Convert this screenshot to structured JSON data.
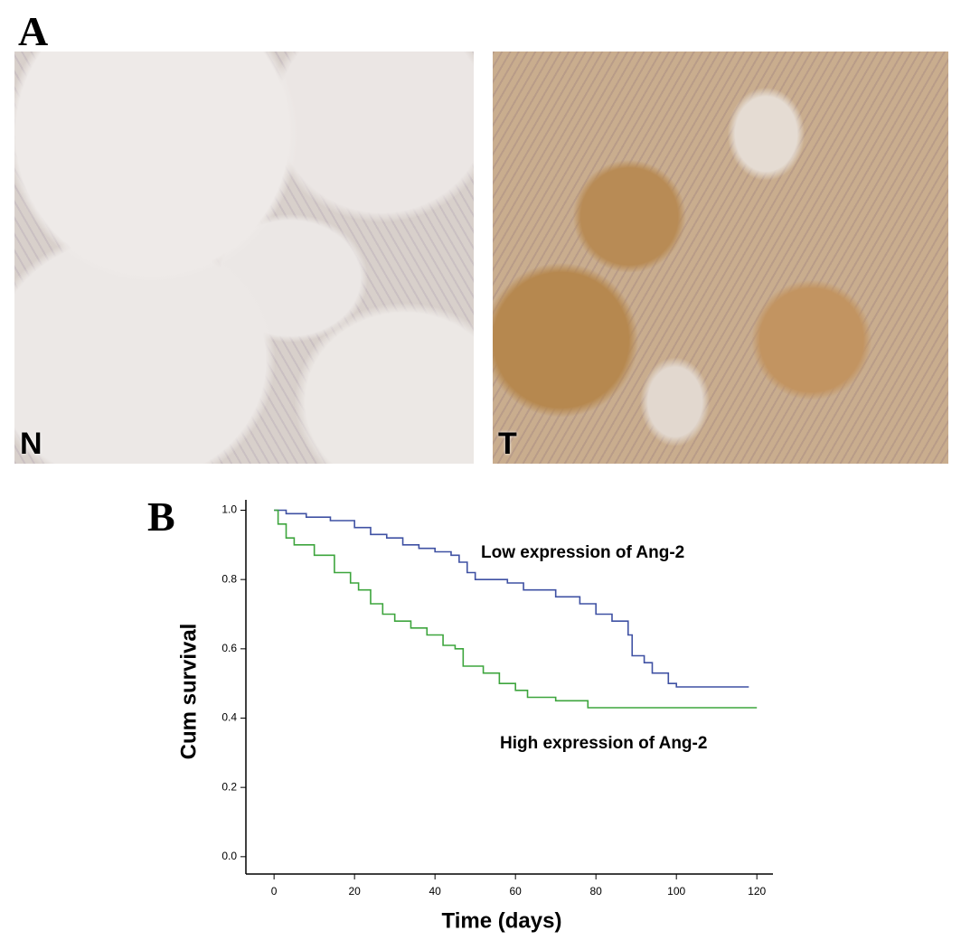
{
  "panels": {
    "a": "A",
    "b": "B"
  },
  "images": {
    "normal": "N",
    "tumor": "T"
  },
  "chart_data": {
    "type": "step",
    "xlabel": "Time (days)",
    "ylabel": "Cum survival",
    "xlim": [
      -7,
      124
    ],
    "ylim": [
      -0.05,
      1.03
    ],
    "xticks": [
      0,
      20,
      40,
      60,
      80,
      100,
      120
    ],
    "yticks": [
      {
        "value": 0,
        "label": "0.0"
      },
      0.2,
      0.4,
      0.6,
      0.8,
      {
        "value": 1,
        "label": "1.0"
      }
    ],
    "annotations": [
      "Low expression of Ang-2",
      "High expression of Ang-2"
    ],
    "series": [
      {
        "color": "#3f51a3",
        "x": [
          0,
          3,
          8,
          14,
          20,
          24,
          28,
          32,
          36,
          40,
          44,
          46,
          48,
          50,
          58,
          62,
          70,
          76,
          80,
          84,
          88,
          89,
          92,
          94,
          98,
          100,
          118
        ],
        "values": [
          1.0,
          0.99,
          0.98,
          0.97,
          0.95,
          0.93,
          0.92,
          0.9,
          0.89,
          0.88,
          0.87,
          0.85,
          0.82,
          0.8,
          0.79,
          0.77,
          0.75,
          0.73,
          0.7,
          0.68,
          0.64,
          0.58,
          0.56,
          0.53,
          0.5,
          0.49,
          0.49
        ]
      },
      {
        "color": "#3da53d",
        "x": [
          0,
          1,
          3,
          5,
          10,
          15,
          19,
          21,
          24,
          27,
          30,
          34,
          38,
          42,
          45,
          47,
          52,
          56,
          60,
          63,
          70,
          78,
          120
        ],
        "values": [
          1.0,
          0.96,
          0.92,
          0.9,
          0.87,
          0.82,
          0.79,
          0.77,
          0.73,
          0.7,
          0.68,
          0.66,
          0.64,
          0.61,
          0.6,
          0.55,
          0.53,
          0.5,
          0.48,
          0.46,
          0.45,
          0.43,
          0.43
        ]
      }
    ]
  }
}
